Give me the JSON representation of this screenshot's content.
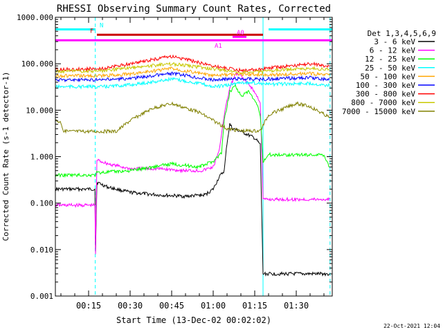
{
  "chart_data": {
    "type": "line",
    "title": "RHESSI Observing Summary Count Rates, Corrected",
    "xlabel": "Start Time (13-Dec-02 00:02:02)",
    "ylabel": "Corrected Count Rate (s-1 detector-1)",
    "yscale": "log",
    "ylim": [
      0.001,
      1000
    ],
    "xlim_minutes": [
      3,
      103
    ],
    "x_ticks": [
      {
        "label": "00:15",
        "minute": 15
      },
      {
        "label": "00:30",
        "minute": 30
      },
      {
        "label": "00:45",
        "minute": 45
      },
      {
        "label": "01:00",
        "minute": 60
      },
      {
        "label": "01:15",
        "minute": 75
      },
      {
        "label": "01:30",
        "minute": 90
      }
    ],
    "y_ticks": [
      {
        "label": "1000.000",
        "value": 1000
      },
      {
        "label": "100.000",
        "value": 100
      },
      {
        "label": "10.000",
        "value": 10
      },
      {
        "label": "1.000",
        "value": 1
      },
      {
        "label": "0.100",
        "value": 0.1
      },
      {
        "label": "0.010",
        "value": 0.01
      },
      {
        "label": "0.001",
        "value": 0.001
      }
    ],
    "legend_title": "Det 1,3,4,5,6,9",
    "series": [
      {
        "name": "3 - 6 keV",
        "color": "#000000",
        "points": [
          [
            3,
            0.2
          ],
          [
            17.3,
            0.2
          ],
          [
            17.5,
            0.008
          ],
          [
            18,
            0.28
          ],
          [
            22,
            0.22
          ],
          [
            30,
            0.17
          ],
          [
            40,
            0.15
          ],
          [
            50,
            0.14
          ],
          [
            57,
            0.15
          ],
          [
            60,
            0.2
          ],
          [
            62,
            0.35
          ],
          [
            64,
            0.5
          ],
          [
            65,
            2
          ],
          [
            66,
            5
          ],
          [
            67,
            4
          ],
          [
            70,
            3.5
          ],
          [
            75,
            2.5
          ],
          [
            77,
            1.8
          ],
          [
            78,
            0.003
          ],
          [
            100,
            0.003
          ],
          [
            102,
            0.003
          ]
        ]
      },
      {
        "name": "6 - 12 keV",
        "color": "#ff00ff",
        "points": [
          [
            3,
            0.09
          ],
          [
            17.3,
            0.09
          ],
          [
            17.5,
            0.008
          ],
          [
            18,
            0.85
          ],
          [
            22,
            0.7
          ],
          [
            30,
            0.55
          ],
          [
            40,
            0.55
          ],
          [
            50,
            0.5
          ],
          [
            56,
            0.5
          ],
          [
            60,
            0.6
          ],
          [
            62,
            1.2
          ],
          [
            64,
            8
          ],
          [
            66,
            30
          ],
          [
            68,
            60
          ],
          [
            70,
            55
          ],
          [
            74,
            30
          ],
          [
            77,
            15
          ],
          [
            78,
            0.12
          ],
          [
            102,
            0.12
          ]
        ]
      },
      {
        "name": "12 - 25 keV",
        "color": "#00ff00",
        "points": [
          [
            3,
            0.4
          ],
          [
            17.3,
            0.4
          ],
          [
            18,
            0.45
          ],
          [
            30,
            0.5
          ],
          [
            45,
            0.7
          ],
          [
            55,
            0.6
          ],
          [
            60,
            0.8
          ],
          [
            63,
            1.2
          ],
          [
            64,
            6
          ],
          [
            66,
            25
          ],
          [
            68,
            35
          ],
          [
            70,
            20
          ],
          [
            73,
            25
          ],
          [
            76,
            12
          ],
          [
            77,
            8
          ],
          [
            78,
            0.8
          ],
          [
            80,
            1.1
          ],
          [
            100,
            1.1
          ],
          [
            102,
            0.6
          ]
        ]
      },
      {
        "name": "25 - 50 keV",
        "color": "#00ffff",
        "points": [
          [
            3,
            32
          ],
          [
            20,
            32
          ],
          [
            30,
            35
          ],
          [
            40,
            42
          ],
          [
            45,
            47
          ],
          [
            55,
            38
          ],
          [
            60,
            32
          ],
          [
            65,
            34
          ],
          [
            70,
            40
          ],
          [
            77,
            38
          ],
          [
            80,
            36
          ],
          [
            95,
            38
          ],
          [
            102,
            34
          ]
        ]
      },
      {
        "name": "50 - 100 keV",
        "color": "#ffa500",
        "points": [
          [
            3,
            55
          ],
          [
            20,
            55
          ],
          [
            30,
            60
          ],
          [
            45,
            80
          ],
          [
            60,
            55
          ],
          [
            70,
            60
          ],
          [
            77,
            58
          ],
          [
            80,
            58
          ],
          [
            95,
            62
          ],
          [
            102,
            56
          ]
        ]
      },
      {
        "name": "100 - 300 keV",
        "color": "#0000ff",
        "points": [
          [
            3,
            45
          ],
          [
            20,
            45
          ],
          [
            30,
            48
          ],
          [
            45,
            62
          ],
          [
            60,
            45
          ],
          [
            70,
            48
          ],
          [
            77,
            46
          ],
          [
            80,
            47
          ],
          [
            95,
            50
          ],
          [
            102,
            46
          ]
        ]
      },
      {
        "name": "300 - 800 keV",
        "color": "#ff0000",
        "points": [
          [
            3,
            75
          ],
          [
            20,
            78
          ],
          [
            30,
            100
          ],
          [
            45,
            145
          ],
          [
            60,
            90
          ],
          [
            70,
            72
          ],
          [
            77,
            75
          ],
          [
            80,
            80
          ],
          [
            95,
            100
          ],
          [
            102,
            88
          ]
        ]
      },
      {
        "name": "800 - 7000 keV",
        "color": "#c8c800",
        "points": [
          [
            3,
            68
          ],
          [
            20,
            70
          ],
          [
            30,
            82
          ],
          [
            45,
            100
          ],
          [
            60,
            78
          ],
          [
            70,
            65
          ],
          [
            77,
            67
          ],
          [
            80,
            70
          ],
          [
            95,
            80
          ],
          [
            102,
            75
          ]
        ]
      },
      {
        "name": "7000 - 15000 keV",
        "color": "#808000",
        "points": [
          [
            3,
            6
          ],
          [
            5,
            5.5
          ],
          [
            6,
            3.5
          ],
          [
            25,
            3.5
          ],
          [
            30,
            6
          ],
          [
            38,
            11
          ],
          [
            45,
            14
          ],
          [
            55,
            9
          ],
          [
            60,
            6
          ],
          [
            65,
            4
          ],
          [
            70,
            3.6
          ],
          [
            77,
            3.6
          ],
          [
            80,
            8
          ],
          [
            90,
            14
          ],
          [
            95,
            12
          ],
          [
            102,
            7
          ]
        ]
      }
    ],
    "flags": [
      {
        "label": "N",
        "color": "#00ffff",
        "segments": [
          [
            3,
            17.5
          ],
          [
            80,
            103
          ]
        ],
        "level": 550
      },
      {
        "label": "F",
        "color": "#cc0000",
        "segments": [
          [
            18,
            78
          ]
        ],
        "level": 420
      },
      {
        "label": "A0",
        "color": "#ff00ff",
        "segments": [
          [
            67,
            72
          ]
        ],
        "level": 380
      },
      {
        "label": "A1",
        "color": "#ff00ff",
        "segments": [
          [
            3,
            103
          ]
        ],
        "level": 320
      }
    ],
    "vertical_markers": [
      {
        "minute": 17.4,
        "color": "#00ffff",
        "style": "dashed"
      },
      {
        "minute": 78,
        "color": "#00ffff",
        "style": "solid"
      },
      {
        "minute": 102.2,
        "color": "#00ffff",
        "style": "dashed"
      }
    ],
    "timestamp": "22-Oct-2021 12:04"
  }
}
